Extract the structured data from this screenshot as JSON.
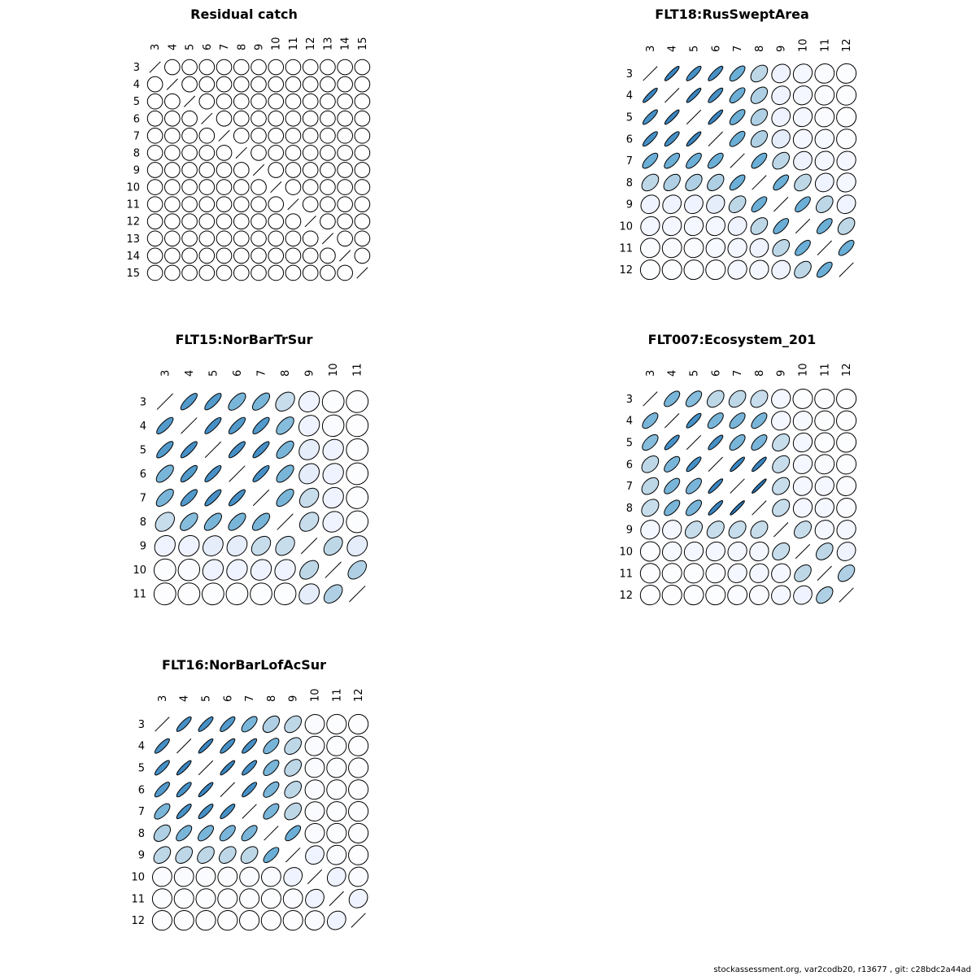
{
  "footer": "stockassessment.org, var2codb20, r13677 , git: c28bdc2a44ad",
  "chart_data": [
    {
      "type": "heatmap",
      "title": "Residual catch",
      "labels": [
        "3",
        "4",
        "5",
        "6",
        "7",
        "8",
        "9",
        "10",
        "11",
        "12",
        "13",
        "14",
        "15"
      ],
      "diagonal": "line",
      "matrix": [
        [
          1,
          0,
          0,
          0,
          0,
          0,
          0,
          0,
          0,
          0,
          0,
          0,
          0
        ],
        [
          0,
          1,
          0,
          0,
          0,
          0,
          0,
          0,
          0,
          0,
          0,
          0,
          0
        ],
        [
          0,
          0,
          1,
          0,
          0,
          0,
          0,
          0,
          0,
          0,
          0,
          0,
          0
        ],
        [
          0,
          0,
          0,
          1,
          0,
          0,
          0,
          0,
          0,
          0,
          0,
          0,
          0
        ],
        [
          0,
          0,
          0,
          0,
          1,
          0,
          0,
          0,
          0,
          0,
          0,
          0,
          0
        ],
        [
          0,
          0,
          0,
          0,
          0,
          1,
          0,
          0,
          0,
          0,
          0,
          0,
          0
        ],
        [
          0,
          0,
          0,
          0,
          0,
          0,
          1,
          0,
          0,
          0,
          0,
          0,
          0
        ],
        [
          0,
          0,
          0,
          0,
          0,
          0,
          0,
          1,
          0,
          0,
          0,
          0,
          0
        ],
        [
          0,
          0,
          0,
          0,
          0,
          0,
          0,
          0,
          1,
          0,
          0,
          0,
          0
        ],
        [
          0,
          0,
          0,
          0,
          0,
          0,
          0,
          0,
          0,
          1,
          0,
          0,
          0
        ],
        [
          0,
          0,
          0,
          0,
          0,
          0,
          0,
          0,
          0,
          0,
          1,
          0,
          0
        ],
        [
          0,
          0,
          0,
          0,
          0,
          0,
          0,
          0,
          0,
          0,
          0,
          1,
          0
        ],
        [
          0,
          0,
          0,
          0,
          0,
          0,
          0,
          0,
          0,
          0,
          0,
          0,
          1
        ]
      ]
    },
    {
      "type": "heatmap",
      "title": "FLT18:RusSweptArea",
      "labels": [
        "3",
        "4",
        "5",
        "6",
        "7",
        "8",
        "9",
        "10",
        "11",
        "12"
      ],
      "diagonal": "line",
      "matrix": [
        [
          1,
          0.9,
          0.85,
          0.85,
          0.7,
          0.4,
          0.15,
          0.1,
          0.05,
          0.03
        ],
        [
          0.9,
          1,
          0.9,
          0.85,
          0.7,
          0.45,
          0.15,
          0.1,
          0.05,
          0.03
        ],
        [
          0.85,
          0.9,
          1,
          0.9,
          0.7,
          0.45,
          0.15,
          0.1,
          0.05,
          0.03
        ],
        [
          0.85,
          0.85,
          0.9,
          1,
          0.7,
          0.45,
          0.2,
          0.1,
          0.08,
          0.03
        ],
        [
          0.7,
          0.7,
          0.7,
          0.7,
          1,
          0.7,
          0.4,
          0.15,
          0.1,
          0.1
        ],
        [
          0.4,
          0.45,
          0.45,
          0.45,
          0.7,
          1,
          0.7,
          0.4,
          0.15,
          0.1
        ],
        [
          0.15,
          0.15,
          0.15,
          0.2,
          0.4,
          0.7,
          1,
          0.7,
          0.4,
          0.15
        ],
        [
          0.1,
          0.1,
          0.1,
          0.1,
          0.15,
          0.4,
          0.7,
          1,
          0.7,
          0.4
        ],
        [
          0.05,
          0.05,
          0.05,
          0.08,
          0.1,
          0.15,
          0.4,
          0.7,
          1,
          0.7
        ],
        [
          0.03,
          0.03,
          0.03,
          0.03,
          0.1,
          0.1,
          0.15,
          0.4,
          0.7,
          1
        ]
      ]
    },
    {
      "type": "heatmap",
      "title": "FLT15:NorBarTrSur",
      "labels": [
        "3",
        "4",
        "5",
        "6",
        "7",
        "8",
        "9",
        "10",
        "11"
      ],
      "diagonal": "line",
      "matrix": [
        [
          1,
          0.8,
          0.8,
          0.65,
          0.65,
          0.35,
          0.15,
          0.03,
          0.02
        ],
        [
          0.8,
          1,
          0.85,
          0.8,
          0.8,
          0.6,
          0.15,
          0.05,
          0.02
        ],
        [
          0.8,
          0.85,
          1,
          0.85,
          0.85,
          0.65,
          0.2,
          0.15,
          0.03
        ],
        [
          0.65,
          0.8,
          0.85,
          1,
          0.85,
          0.65,
          0.2,
          0.15,
          0.03
        ],
        [
          0.65,
          0.8,
          0.85,
          0.85,
          1,
          0.65,
          0.35,
          0.15,
          0.03
        ],
        [
          0.35,
          0.6,
          0.65,
          0.65,
          0.65,
          1,
          0.35,
          0.15,
          0.03
        ],
        [
          0.15,
          0.15,
          0.2,
          0.2,
          0.35,
          0.35,
          1,
          0.4,
          0.2
        ],
        [
          0.03,
          0.05,
          0.15,
          0.15,
          0.15,
          0.15,
          0.4,
          1,
          0.45
        ],
        [
          0.02,
          0.02,
          0.03,
          0.03,
          0.03,
          0.03,
          0.2,
          0.45,
          1
        ]
      ]
    },
    {
      "type": "heatmap",
      "title": "FLT007:Ecosystem_201",
      "labels": [
        "3",
        "4",
        "5",
        "6",
        "7",
        "8",
        "9",
        "10",
        "11",
        "12"
      ],
      "diagonal": "line",
      "matrix": [
        [
          1,
          0.65,
          0.6,
          0.4,
          0.4,
          0.35,
          0.1,
          0.03,
          0.02,
          0.02
        ],
        [
          0.65,
          1,
          0.85,
          0.65,
          0.65,
          0.65,
          0.1,
          0.08,
          0.03,
          0.02
        ],
        [
          0.6,
          0.85,
          1,
          0.85,
          0.65,
          0.65,
          0.35,
          0.1,
          0.03,
          0.03
        ],
        [
          0.4,
          0.65,
          0.85,
          1,
          0.9,
          0.9,
          0.35,
          0.1,
          0.05,
          0.03
        ],
        [
          0.4,
          0.65,
          0.65,
          0.9,
          1,
          0.95,
          0.35,
          0.1,
          0.1,
          0.05
        ],
        [
          0.35,
          0.65,
          0.65,
          0.9,
          0.95,
          1,
          0.35,
          0.1,
          0.1,
          0.05
        ],
        [
          0.1,
          0.1,
          0.35,
          0.35,
          0.35,
          0.35,
          1,
          0.35,
          0.1,
          0.1
        ],
        [
          0.03,
          0.08,
          0.1,
          0.1,
          0.1,
          0.1,
          0.35,
          1,
          0.4,
          0.15
        ],
        [
          0.02,
          0.03,
          0.03,
          0.05,
          0.1,
          0.1,
          0.1,
          0.4,
          1,
          0.45
        ],
        [
          0.02,
          0.02,
          0.03,
          0.03,
          0.05,
          0.05,
          0.1,
          0.15,
          0.45,
          1
        ]
      ]
    },
    {
      "type": "heatmap",
      "title": "FLT16:NorBarLofAcSur",
      "labels": [
        "3",
        "4",
        "5",
        "6",
        "7",
        "8",
        "9",
        "10",
        "11",
        "12"
      ],
      "diagonal": "line",
      "matrix": [
        [
          1,
          0.85,
          0.85,
          0.8,
          0.65,
          0.45,
          0.4,
          0.05,
          0.03,
          0.02
        ],
        [
          0.85,
          1,
          0.9,
          0.85,
          0.85,
          0.65,
          0.4,
          0.05,
          0.03,
          0.02
        ],
        [
          0.85,
          0.9,
          1,
          0.9,
          0.85,
          0.65,
          0.4,
          0.05,
          0.03,
          0.02
        ],
        [
          0.8,
          0.85,
          0.9,
          1,
          0.85,
          0.65,
          0.4,
          0.05,
          0.03,
          0.02
        ],
        [
          0.65,
          0.85,
          0.85,
          0.85,
          1,
          0.65,
          0.4,
          0.05,
          0.03,
          0.02
        ],
        [
          0.45,
          0.65,
          0.65,
          0.65,
          0.65,
          1,
          0.7,
          0.05,
          0.03,
          0.02
        ],
        [
          0.4,
          0.4,
          0.4,
          0.4,
          0.4,
          0.7,
          1,
          0.15,
          0.05,
          0.02
        ],
        [
          0.05,
          0.05,
          0.05,
          0.05,
          0.05,
          0.05,
          0.15,
          1,
          0.15,
          0.05
        ],
        [
          0.03,
          0.03,
          0.03,
          0.03,
          0.03,
          0.03,
          0.05,
          0.15,
          1,
          0.15
        ],
        [
          0.02,
          0.02,
          0.02,
          0.02,
          0.02,
          0.02,
          0.02,
          0.05,
          0.15,
          1
        ]
      ]
    }
  ]
}
